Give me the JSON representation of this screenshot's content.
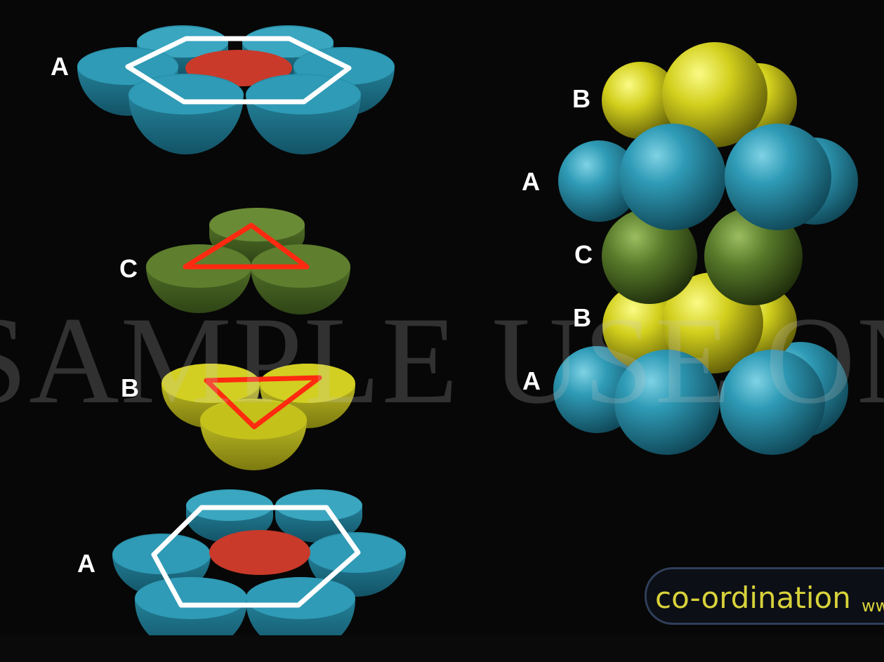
{
  "left_stack": {
    "layer_top_label": "A",
    "layer_c_label": "C",
    "layer_b_label": "B",
    "layer_bottom_label": "A"
  },
  "right_stack": {
    "labels": [
      "B",
      "A",
      "C",
      "B",
      "A"
    ]
  },
  "watermark": {
    "text": "SAMPLE USE ONLY"
  },
  "caption": {
    "main": "co-ordination",
    "suffix": "ww"
  },
  "colors": {
    "a_layer": "#2a93ad",
    "b_layer": "#c7c622",
    "c_layer": "#5b7a2c",
    "center_marker": "#c93a2a",
    "hexagon_outline": "#ffffff",
    "triangle_outline": "#ff2a10"
  }
}
